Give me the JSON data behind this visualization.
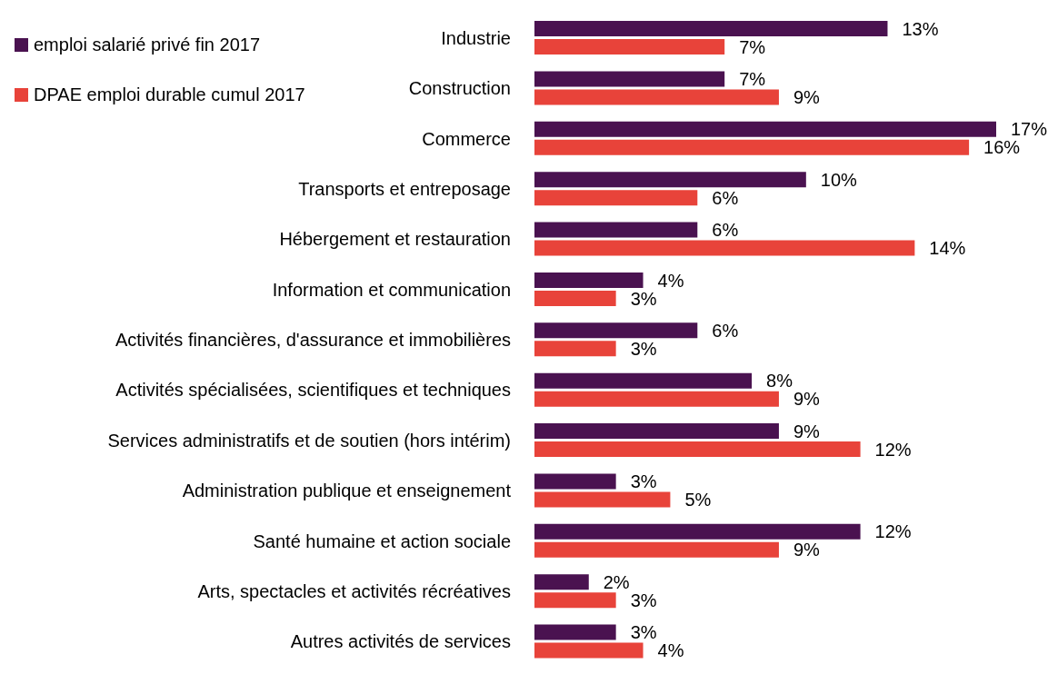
{
  "chart_data": {
    "type": "bar",
    "orientation": "horizontal",
    "categories": [
      "Industrie",
      "Construction",
      "Commerce",
      "Transports et entreposage",
      "Hébergement et restauration",
      "Information et communication",
      "Activités financières, d'assurance et immobilières",
      "Activités spécialisées, scientifiques et techniques",
      "Services administratifs et de soutien (hors intérim)",
      "Administration publique et enseignement",
      "Santé humaine et action sociale",
      "Arts, spectacles et activités récréatives",
      "Autres activités de services"
    ],
    "series": [
      {
        "name": "emploi salarié privé fin 2017",
        "color": "#4a1250",
        "values": [
          13,
          7,
          17,
          10,
          6,
          4,
          6,
          8,
          9,
          3,
          12,
          2,
          3
        ],
        "value_labels": [
          "13%",
          "7%",
          "17%",
          "10%",
          "6%",
          "4%",
          "6%",
          "8%",
          "9%",
          "3%",
          "12%",
          "2%",
          "3%"
        ]
      },
      {
        "name": "DPAE emploi durable cumul 2017",
        "color": "#e8433a",
        "values": [
          7,
          9,
          16,
          6,
          14,
          3,
          3,
          9,
          12,
          5,
          9,
          3,
          4
        ],
        "value_labels": [
          "7%",
          "9%",
          "16%",
          "6%",
          "14%",
          "3%",
          "3%",
          "9%",
          "12%",
          "5%",
          "9%",
          "3%",
          "4%"
        ]
      }
    ],
    "legend": "top left",
    "grid": false
  }
}
